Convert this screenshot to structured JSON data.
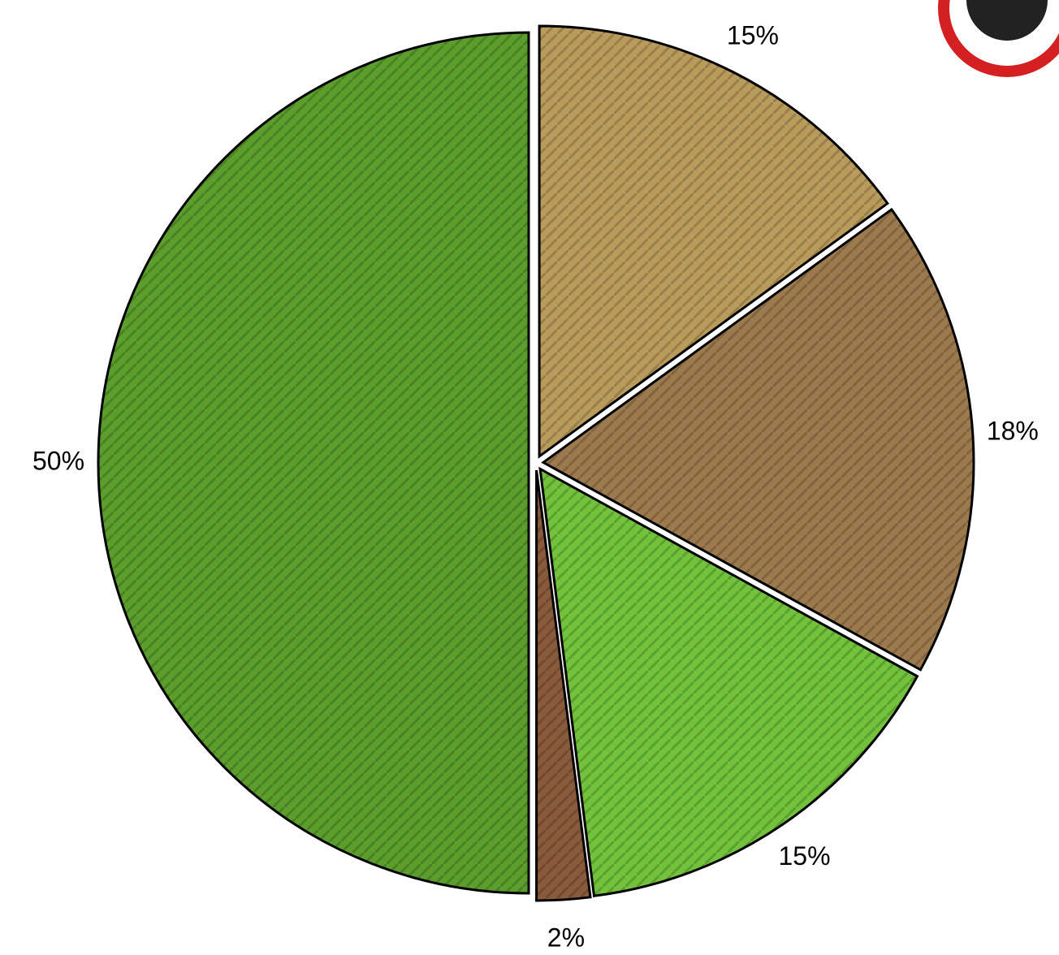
{
  "chart_data": {
    "type": "pie",
    "values": [
      15,
      18,
      15,
      2,
      50
    ],
    "value_labels": [
      "15%",
      "18%",
      "15%",
      "2%",
      "50%"
    ],
    "colors": [
      "#b99c5c",
      "#9c7a4e",
      "#72c23c",
      "#8a5a3c",
      "#5c9e2c"
    ]
  }
}
